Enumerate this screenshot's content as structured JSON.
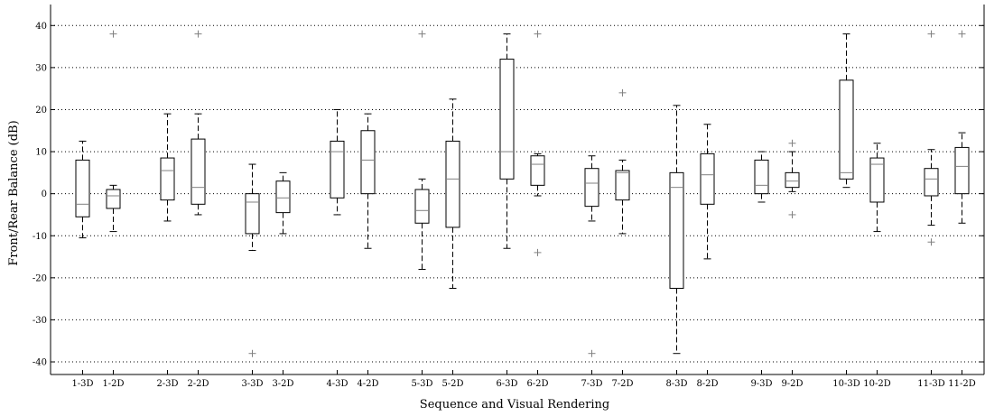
{
  "chart_data": {
    "type": "box",
    "xlabel": "Sequence and Visual Rendering",
    "ylabel": "Front/Rear Balance (dB)",
    "ylim": [
      -43,
      45
    ],
    "yticks": [
      -40,
      -30,
      -20,
      -10,
      0,
      10,
      20,
      30,
      40
    ],
    "grid": "y-dotted",
    "outlier_marker": "+",
    "colors": {
      "box": "#000000",
      "median": "#808080",
      "outlier": "#808080",
      "grid": "#000000"
    },
    "boxes": [
      {
        "label": "1-3D",
        "min": -10.5,
        "q1": -5.5,
        "median": -2.5,
        "q3": 8.0,
        "max": 12.5,
        "outliers": []
      },
      {
        "label": "1-2D",
        "min": -9.0,
        "q1": -3.5,
        "median": -0.5,
        "q3": 1.0,
        "max": 2.0,
        "outliers": [
          38
        ]
      },
      {
        "label": "2-3D",
        "min": -6.5,
        "q1": -1.5,
        "median": 5.5,
        "q3": 8.5,
        "max": 19.0,
        "outliers": []
      },
      {
        "label": "2-2D",
        "min": -5.0,
        "q1": -2.5,
        "median": 1.5,
        "q3": 13.0,
        "max": 19.0,
        "outliers": [
          38
        ]
      },
      {
        "label": "3-3D",
        "min": -13.5,
        "q1": -9.5,
        "median": -2.0,
        "q3": 0.0,
        "max": 7.0,
        "outliers": [
          -38
        ]
      },
      {
        "label": "3-2D",
        "min": -9.5,
        "q1": -4.5,
        "median": -1.0,
        "q3": 3.0,
        "max": 5.0,
        "outliers": []
      },
      {
        "label": "4-3D",
        "min": -5.0,
        "q1": -1.0,
        "median": 10.0,
        "q3": 12.5,
        "max": 20.0,
        "outliers": []
      },
      {
        "label": "4-2D",
        "min": -13.0,
        "q1": 0.0,
        "median": 8.0,
        "q3": 15.0,
        "max": 19.0,
        "outliers": []
      },
      {
        "label": "5-3D",
        "min": -18.0,
        "q1": -7.0,
        "median": -4.0,
        "q3": 1.0,
        "max": 3.5,
        "outliers": [
          38
        ]
      },
      {
        "label": "5-2D",
        "min": -22.5,
        "q1": -8.0,
        "median": 3.5,
        "q3": 12.5,
        "max": 22.5,
        "outliers": []
      },
      {
        "label": "6-3D",
        "min": -13.0,
        "q1": 3.5,
        "median": 10.0,
        "q3": 32.0,
        "max": 38.0,
        "outliers": []
      },
      {
        "label": "6-2D",
        "min": -0.5,
        "q1": 2.0,
        "median": 7.0,
        "q3": 9.0,
        "max": 9.5,
        "outliers": [
          38,
          -14
        ]
      },
      {
        "label": "7-3D",
        "min": -6.5,
        "q1": -3.0,
        "median": 2.5,
        "q3": 6.0,
        "max": 9.0,
        "outliers": [
          -38
        ]
      },
      {
        "label": "7-2D",
        "min": -9.5,
        "q1": -1.5,
        "median": 5.0,
        "q3": 5.5,
        "max": 8.0,
        "outliers": [
          24
        ]
      },
      {
        "label": "8-3D",
        "min": -38.0,
        "q1": -22.5,
        "median": 1.5,
        "q3": 5.0,
        "max": 21.0,
        "outliers": []
      },
      {
        "label": "8-2D",
        "min": -15.5,
        "q1": -2.5,
        "median": 4.5,
        "q3": 9.5,
        "max": 16.5,
        "outliers": []
      },
      {
        "label": "9-3D",
        "min": -2.0,
        "q1": 0.0,
        "median": 2.0,
        "q3": 8.0,
        "max": 10.0,
        "outliers": []
      },
      {
        "label": "9-2D",
        "min": 0.5,
        "q1": 1.5,
        "median": 3.0,
        "q3": 5.0,
        "max": 10.0,
        "outliers": [
          12,
          -5
        ]
      },
      {
        "label": "10-3D",
        "min": 1.5,
        "q1": 3.5,
        "median": 5.0,
        "q3": 27.0,
        "max": 38.0,
        "outliers": []
      },
      {
        "label": "10-2D",
        "min": -9.0,
        "q1": -2.0,
        "median": 7.0,
        "q3": 8.5,
        "max": 12.0,
        "outliers": []
      },
      {
        "label": "11-3D",
        "min": -7.5,
        "q1": -0.5,
        "median": 3.5,
        "q3": 6.0,
        "max": 10.5,
        "outliers": [
          38,
          -11.5
        ]
      },
      {
        "label": "11-2D",
        "min": -7.0,
        "q1": 0.0,
        "median": 6.5,
        "q3": 11.0,
        "max": 14.5,
        "outliers": [
          38
        ]
      }
    ]
  }
}
